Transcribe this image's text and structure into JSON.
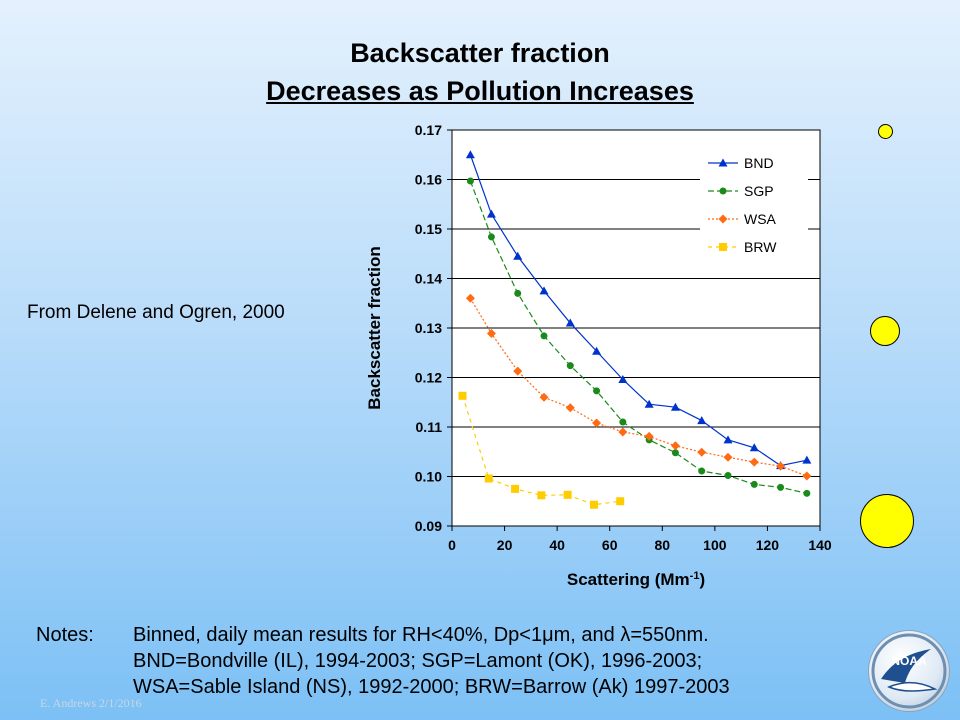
{
  "slide": {
    "title_line1": "Backscatter fraction",
    "title_line2": "Decreases as Pollution Increases",
    "source": "From Delene and Ogren, 2000",
    "notes_label": "Notes:",
    "notes": [
      "Binned, daily mean results for RH<40%, Dp<1μm, and λ=550nm.",
      "BND=Bondville (IL), 1994-2003; SGP=Lamont (OK), 1996-2003;",
      "WSA=Sable Island (NS), 1992-2000; BRW=Barrow (Ak) 1997-2003"
    ],
    "footer": "E. Andrews   2/1/2016",
    "logo_text": "NOAA"
  },
  "chart_data": {
    "type": "line",
    "xlabel": "Scattering (Mm-1)",
    "ylabel": "Backscatter fraction",
    "xlim": [
      0,
      140
    ],
    "ylim": [
      0.09,
      0.17
    ],
    "xticks": [
      0,
      20,
      40,
      60,
      80,
      100,
      120,
      140
    ],
    "yticks": [
      "0.09",
      "0.10",
      "0.11",
      "0.12",
      "0.13",
      "0.14",
      "0.15",
      "0.16",
      "0.17"
    ],
    "grid": "horizontal",
    "legend_position": "top-right",
    "series": [
      {
        "name": "BND",
        "color": "#0033cc",
        "marker": "triangle",
        "dash": "none",
        "x": [
          7,
          15,
          25,
          35,
          45,
          55,
          65,
          75,
          85,
          95,
          105,
          115,
          125,
          135
        ],
        "y": [
          0.165,
          0.153,
          0.1445,
          0.1375,
          0.131,
          0.1253,
          0.1196,
          0.1146,
          0.114,
          0.1113,
          0.1074,
          0.1058,
          0.1022,
          0.1033
        ]
      },
      {
        "name": "SGP",
        "color": "#1a8a1a",
        "marker": "circle",
        "dash": "6,3",
        "x": [
          7,
          15,
          25,
          35,
          45,
          55,
          65,
          75,
          85,
          95,
          105,
          115,
          125,
          135
        ],
        "y": [
          0.1597,
          0.1484,
          0.137,
          0.1284,
          0.1224,
          0.1173,
          0.111,
          0.1074,
          0.1048,
          0.1011,
          0.1002,
          0.0984,
          0.0978,
          0.0966
        ]
      },
      {
        "name": "WSA",
        "color": "#ff6a13",
        "marker": "diamond",
        "dash": "2,2",
        "x": [
          7,
          15,
          25,
          35,
          45,
          55,
          65,
          75,
          85,
          95,
          105,
          115,
          125,
          135
        ],
        "y": [
          0.136,
          0.1289,
          0.1213,
          0.116,
          0.1139,
          0.1108,
          0.109,
          0.1081,
          0.1062,
          0.1049,
          0.1039,
          0.1029,
          0.1021,
          0.1001
        ]
      },
      {
        "name": "BRW",
        "color": "#ffcc00",
        "marker": "square",
        "dash": "4,4",
        "x": [
          4,
          14,
          24,
          34,
          44,
          54,
          64
        ],
        "y": [
          0.1163,
          0.0996,
          0.0975,
          0.0962,
          0.0963,
          0.0943,
          0.095
        ]
      }
    ]
  }
}
